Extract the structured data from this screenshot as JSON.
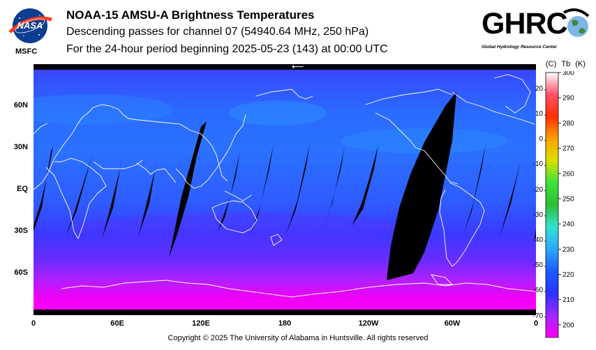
{
  "header": {
    "title": "NOAA-15 AMSU-A Brightness Temperatures",
    "subtitle_line1": "Descending passes for channel 07 (54940.64 MHz, 250 hPa)",
    "subtitle_line2": "For the 24-hour period beginning 2025-05-23 (143) at 00:00 UTC"
  },
  "logos": {
    "nasa_text": "NASA",
    "nasa_center": "MSFC",
    "ghrc_text": "GHRC",
    "ghrc_subtext": "Global Hydrology Resource Center"
  },
  "map": {
    "lat_labels": [
      "60N",
      "30N",
      "EQ",
      "30S",
      "60S"
    ],
    "lat_values": [
      60,
      30,
      0,
      -30,
      -60
    ],
    "lon_labels": [
      "0",
      "60E",
      "120E",
      "180",
      "120W",
      "60W",
      "0"
    ],
    "lon_values": [
      0,
      60,
      120,
      180,
      240,
      300,
      360
    ],
    "projection": "equirectangular, 0 to 360 longitude",
    "arrow_glyph": "⟵"
  },
  "colorbar": {
    "header_c": "(C)",
    "header_tb": "Tb",
    "header_k": "(K)",
    "celsius_ticks": [
      "20",
      "10",
      "0",
      "-10",
      "-20",
      "-30",
      "-40",
      "-50",
      "-60",
      "-70"
    ],
    "celsius_values": [
      20,
      10,
      0,
      -10,
      -20,
      -30,
      -40,
      -50,
      -60,
      -70
    ],
    "kelvin_ticks": [
      "300",
      "290",
      "280",
      "270",
      "260",
      "250",
      "240",
      "230",
      "220",
      "210",
      "200"
    ],
    "kelvin_values": [
      300,
      290,
      280,
      270,
      260,
      250,
      240,
      230,
      220,
      210,
      200
    ],
    "range_k": [
      195,
      300
    ],
    "colors": [
      "#ff00ff",
      "#a028ff",
      "#2a32ff",
      "#1e5aff",
      "#28a8ff",
      "#34e2d2",
      "#2cbf34",
      "#3be33b",
      "#dbe000",
      "#ffa200",
      "#ff3000",
      "#ff5068",
      "#ffffff"
    ]
  },
  "footer": {
    "copyright": "Copyright © 2025 The University of Alabama in Huntsville.  All rights reserved"
  }
}
